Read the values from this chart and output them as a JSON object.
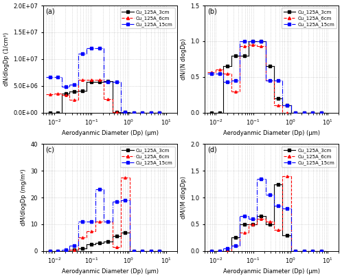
{
  "title_a": "(a)",
  "title_b": "(b)",
  "title_c": "(c)",
  "title_d": "(d)",
  "xlabel": "Aerodyanmic Diameter (Dp) (μm)",
  "ylabel_a": "dN/dlogDp (1/cm³)",
  "ylabel_b": "dN/(N dlogDp)",
  "ylabel_c": "dM/dlogDp (mg/m³)",
  "ylabel_d": "dM/(M dlogDp)",
  "legend_labels": [
    "Cu_125A_3cm",
    "Cu_125A_6cm",
    "Cu_125A_15cm"
  ],
  "colors": [
    "black",
    "red",
    "blue"
  ],
  "linestyles": [
    "-",
    "--",
    "-."
  ],
  "markers": [
    "s",
    "^",
    "s"
  ],
  "bin_edges": [
    0.006,
    0.01,
    0.016,
    0.026,
    0.044,
    0.075,
    0.126,
    0.214,
    0.363,
    0.616,
    1.045,
    1.774,
    3.012,
    5.11,
    8.67
  ],
  "dN_3cm": [
    0,
    0,
    3600000,
    3900000,
    4100000,
    5800000,
    5800000,
    5900000,
    100000,
    100000,
    0,
    0,
    0,
    0
  ],
  "dN_6cm": [
    3500000,
    3600000,
    3300000,
    2400000,
    6200000,
    6200000,
    6100000,
    2600000,
    100000,
    0,
    0,
    0,
    0,
    0
  ],
  "dN_15cm": [
    6600000,
    6600000,
    4800000,
    5200000,
    11000000,
    12000000,
    12000000,
    5800000,
    5800000,
    100000,
    0,
    0,
    0,
    0
  ],
  "dNn_3cm": [
    0,
    0,
    0.65,
    0.8,
    0.8,
    1.0,
    1.0,
    0.65,
    0.2,
    0.1,
    0,
    0,
    0,
    0
  ],
  "dNn_6cm": [
    0.57,
    0.6,
    0.55,
    0.3,
    0.93,
    0.95,
    0.93,
    0.45,
    0.1,
    0,
    0,
    0,
    0,
    0
  ],
  "dNn_15cm": [
    0.55,
    0.55,
    0.43,
    0.45,
    1.0,
    1.0,
    1.0,
    0.45,
    0.45,
    0.1,
    0,
    0,
    0,
    0
  ],
  "dM_3cm": [
    0,
    0,
    0,
    0.5,
    1.0,
    2.5,
    3.0,
    3.5,
    5.5,
    7.0,
    0,
    0,
    0,
    0
  ],
  "dM_6cm": [
    0,
    0,
    0,
    0.5,
    5.0,
    7.5,
    11.0,
    11.0,
    1.5,
    27.5,
    0,
    0,
    0,
    0
  ],
  "dM_15cm": [
    0,
    0,
    0.5,
    2.0,
    11.0,
    11.0,
    23.0,
    11.0,
    18.5,
    19.0,
    0,
    0,
    0,
    0
  ],
  "dMn_3cm": [
    0,
    0,
    0,
    0.25,
    0.5,
    0.5,
    0.65,
    0.5,
    1.25,
    0.3,
    0,
    0,
    0,
    0
  ],
  "dMn_6cm": [
    0,
    0,
    0,
    0.1,
    0.35,
    0.5,
    0.6,
    0.55,
    0.4,
    1.4,
    0,
    0,
    0,
    0
  ],
  "dMn_15cm": [
    0,
    0,
    0.05,
    0.1,
    0.65,
    0.6,
    1.35,
    1.05,
    0.85,
    0.8,
    0,
    0,
    0,
    0
  ],
  "ylim_a": [
    0,
    20000000.0
  ],
  "ylim_b": [
    0,
    1.5
  ],
  "ylim_c": [
    0,
    40
  ],
  "ylim_d": [
    0,
    2.0
  ],
  "yticks_a": [
    0,
    5000000.0,
    10000000.0,
    15000000.0,
    20000000.0
  ],
  "yticks_b": [
    0.0,
    0.5,
    1.0,
    1.5
  ],
  "yticks_c": [
    0,
    10,
    20,
    30,
    40
  ],
  "yticks_d": [
    0.0,
    0.5,
    1.0,
    1.5,
    2.0
  ],
  "xlim": [
    0.005,
    20
  ],
  "grid_color": "#aaaaaa",
  "bg_color": "white"
}
